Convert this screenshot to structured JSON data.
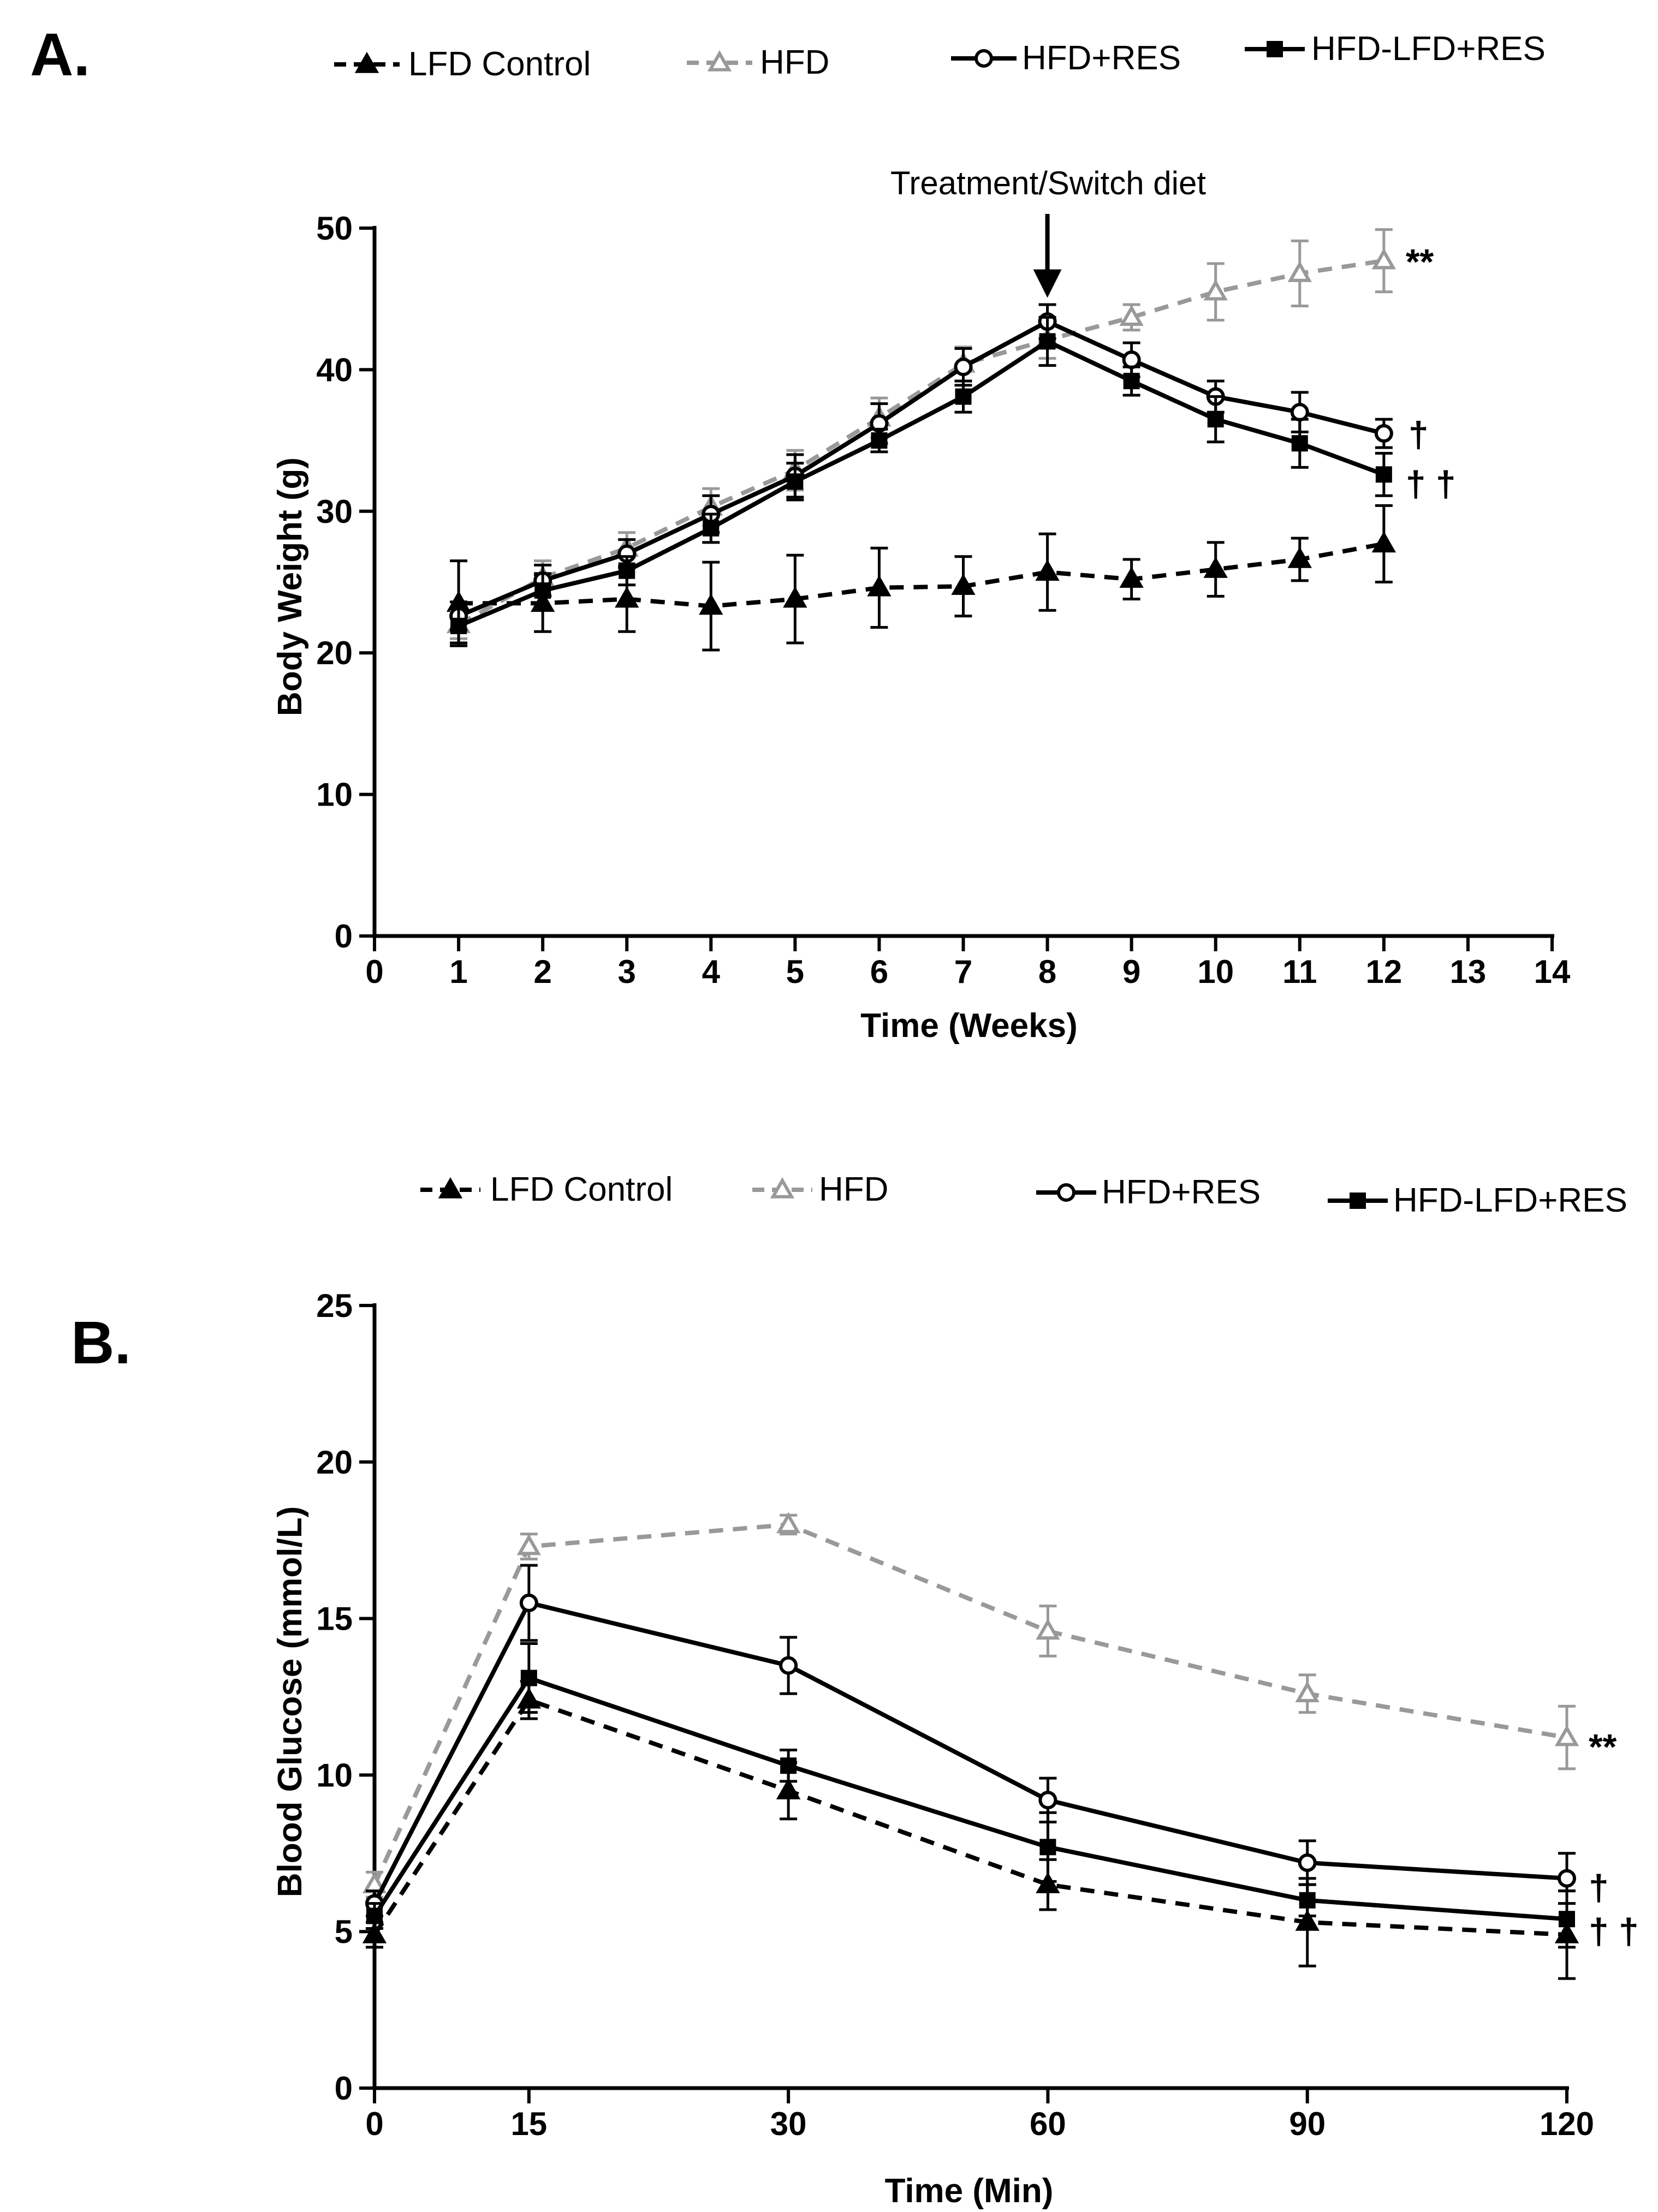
{
  "chart_data": [
    {
      "panel_label": "A.",
      "type": "line",
      "title": "",
      "xlabel": "Time (Weeks)",
      "ylabel": "Body Weight (g)",
      "xlim": [
        0,
        14
      ],
      "ylim": [
        0,
        50
      ],
      "xticks": [
        0,
        1,
        2,
        3,
        4,
        5,
        6,
        7,
        8,
        9,
        10,
        11,
        12,
        13,
        14
      ],
      "yticks": [
        0,
        10,
        20,
        30,
        40,
        50
      ],
      "grid": false,
      "legend_position": "top",
      "annotation": {
        "text": "Treatment/Switch diet",
        "x": 8,
        "y": 43
      },
      "series": [
        {
          "name": "LFD Control",
          "color": "#000000",
          "style": "dashed",
          "marker": "triangle-filled",
          "x": [
            1,
            2,
            3,
            4,
            5,
            6,
            7,
            8,
            9,
            10,
            11,
            12
          ],
          "values": [
            23.5,
            23.5,
            23.8,
            23.3,
            23.8,
            24.6,
            24.7,
            25.7,
            25.2,
            25.9,
            26.6,
            27.7
          ],
          "errors": [
            3.0,
            2.0,
            2.3,
            3.1,
            3.1,
            2.8,
            2.1,
            2.7,
            1.4,
            1.9,
            1.5,
            2.7
          ],
          "significance": ""
        },
        {
          "name": "HFD",
          "color": "#999999",
          "style": "dashed",
          "marker": "triangle-open",
          "x": [
            1,
            2,
            3,
            4,
            5,
            6,
            7,
            8,
            9,
            10,
            11,
            12
          ],
          "values": [
            22.0,
            25.3,
            27.4,
            30.3,
            32.9,
            36.6,
            40.4,
            42.1,
            43.7,
            45.5,
            46.8,
            47.7
          ],
          "errors": [
            1.0,
            1.2,
            1.1,
            1.3,
            1.4,
            1.4,
            1.2,
            1.3,
            0.9,
            2.0,
            2.3,
            2.2
          ],
          "significance": "**"
        },
        {
          "name": "HFD+RES",
          "color": "#000000",
          "style": "solid",
          "marker": "circle-open",
          "x": [
            1,
            2,
            3,
            4,
            5,
            6,
            7,
            8,
            9,
            10,
            11,
            12
          ],
          "values": [
            22.6,
            25.1,
            27.0,
            29.8,
            32.5,
            36.2,
            40.2,
            43.4,
            40.7,
            38.1,
            37.0,
            35.5
          ],
          "errors": [
            1.0,
            1.1,
            1.0,
            1.3,
            1.5,
            1.4,
            1.3,
            1.2,
            1.2,
            1.1,
            1.4,
            1.0
          ],
          "significance": "†"
        },
        {
          "name": "HFD-LFD+RES",
          "color": "#000000",
          "style": "solid",
          "marker": "square-filled",
          "x": [
            1,
            2,
            3,
            4,
            5,
            6,
            7,
            8,
            9,
            10,
            11,
            12
          ],
          "values": [
            21.9,
            24.4,
            25.8,
            28.8,
            32.1,
            35.0,
            38.1,
            42.0,
            39.2,
            36.5,
            34.8,
            32.6
          ],
          "errors": [
            1.2,
            1.2,
            1.0,
            1.0,
            1.3,
            0.8,
            1.1,
            1.7,
            1.0,
            1.6,
            1.7,
            1.5
          ],
          "significance": "† †"
        }
      ]
    },
    {
      "panel_label": "B.",
      "type": "line",
      "title": "",
      "xlabel": "Time (Min)",
      "ylabel": "Blood Glucose (mmol/L)",
      "xlim": [
        0,
        120
      ],
      "ylim": [
        0,
        25
      ],
      "xticks": [
        0,
        15,
        30,
        60,
        90,
        120
      ],
      "yticks": [
        0,
        5,
        10,
        15,
        20,
        25
      ],
      "grid": false,
      "legend_position": "top",
      "series": [
        {
          "name": "LFD Control",
          "color": "#000000",
          "style": "dashed",
          "marker": "triangle-filled",
          "x": [
            0,
            15,
            30,
            60,
            90,
            120
          ],
          "values": [
            4.9,
            12.4,
            9.5,
            6.5,
            5.3,
            4.9
          ],
          "errors": [
            0.4,
            0.6,
            0.9,
            0.8,
            1.4,
            1.4
          ],
          "significance": ""
        },
        {
          "name": "HFD",
          "color": "#999999",
          "style": "dashed",
          "marker": "triangle-open",
          "x": [
            0,
            15,
            30,
            60,
            90,
            120
          ],
          "values": [
            6.5,
            17.3,
            18.0,
            14.6,
            12.6,
            11.2
          ],
          "errors": [
            0.4,
            0.4,
            0.3,
            0.8,
            0.6,
            1.0
          ],
          "significance": "**"
        },
        {
          "name": "HFD+RES",
          "color": "#000000",
          "style": "solid",
          "marker": "circle-open",
          "x": [
            0,
            15,
            30,
            60,
            90,
            120
          ],
          "values": [
            5.9,
            15.5,
            13.5,
            9.2,
            7.2,
            6.7
          ],
          "errors": [
            0.4,
            1.2,
            0.9,
            0.7,
            0.7,
            0.8
          ],
          "significance": "†"
        },
        {
          "name": "HFD-LFD+RES",
          "color": "#000000",
          "style": "solid",
          "marker": "square-filled",
          "x": [
            0,
            15,
            30,
            60,
            90,
            120
          ],
          "values": [
            5.5,
            13.1,
            10.3,
            7.7,
            6.0,
            5.4
          ],
          "errors": [
            0.4,
            1.1,
            0.5,
            1.1,
            0.5,
            0.9
          ],
          "significance": "† †"
        }
      ]
    }
  ]
}
